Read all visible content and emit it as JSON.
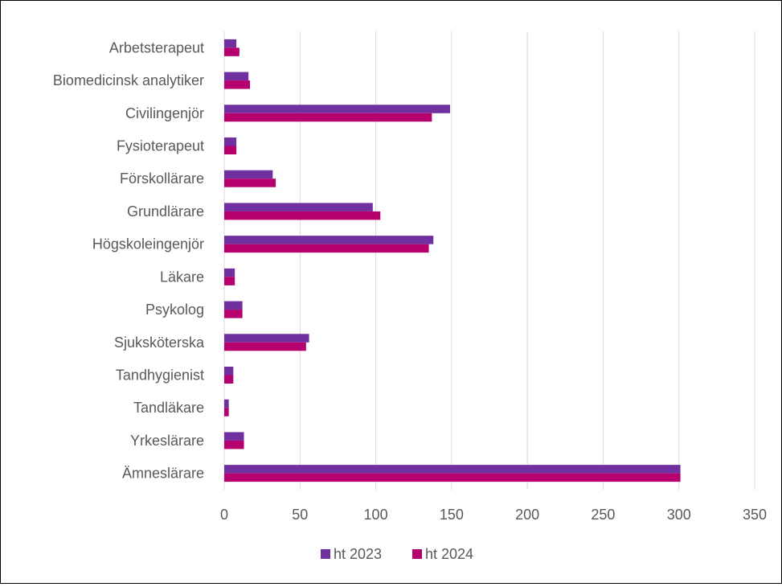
{
  "chart_data": {
    "type": "bar",
    "orientation": "horizontal",
    "title": "",
    "xlabel": "",
    "ylabel": "",
    "categories": [
      "Arbetsterapeut",
      "Biomedicinsk analytiker",
      "Civilingenjör",
      "Fysioterapeut",
      "Förskollärare",
      "Grundlärare",
      "Högskoleingenjör",
      "Läkare",
      "Psykolog",
      "Sjuksköterska",
      "Tandhygienist",
      "Tandläkare",
      "Yrkeslärare",
      "Ämneslärare"
    ],
    "series": [
      {
        "name": "ht 2023",
        "color": "#7030A0",
        "values": [
          8,
          16,
          149,
          8,
          32,
          98,
          138,
          7,
          12,
          56,
          6,
          3,
          13,
          301
        ]
      },
      {
        "name": "ht 2024",
        "color": "#B5006E",
        "values": [
          10,
          17,
          137,
          8,
          34,
          103,
          135,
          7,
          12,
          54,
          6,
          3,
          13,
          301
        ]
      }
    ],
    "xlim": [
      0,
      350
    ],
    "xticks": [
      "0",
      "50",
      "100",
      "150",
      "200",
      "250",
      "300",
      "350"
    ],
    "grid": true,
    "legend_position": "bottom"
  }
}
